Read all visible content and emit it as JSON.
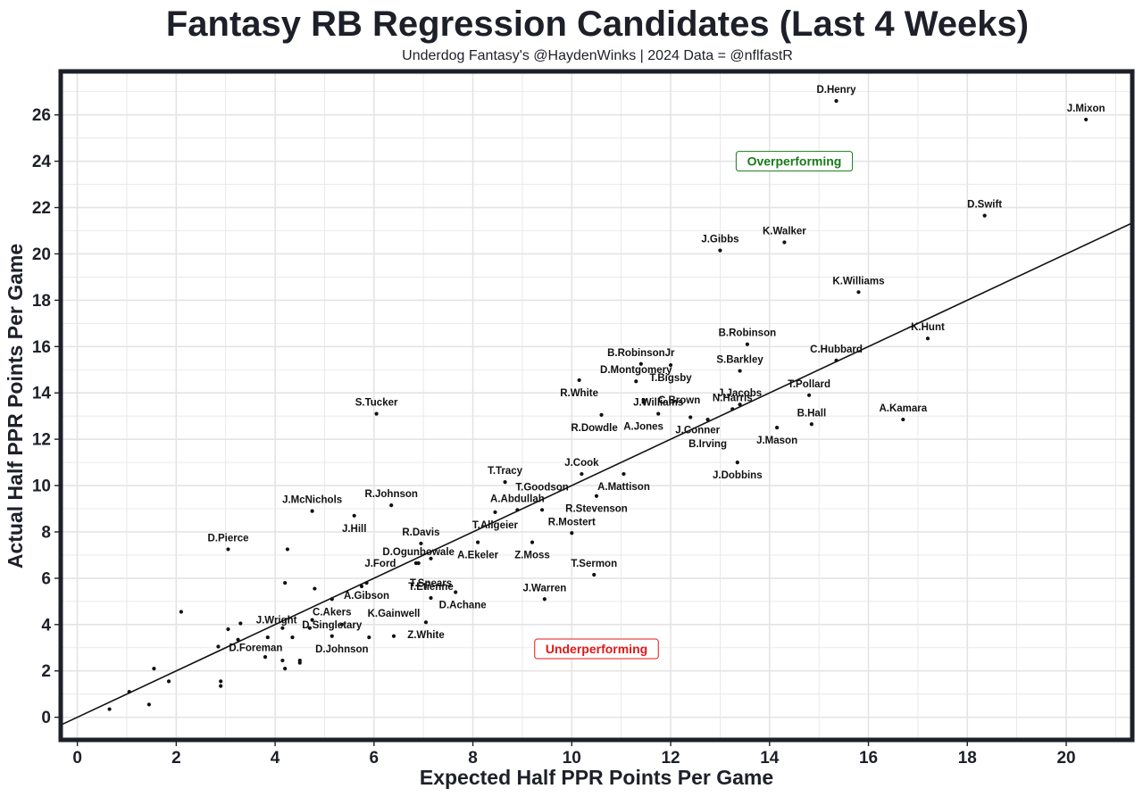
{
  "chart_data": {
    "type": "scatter",
    "title": "Fantasy RB Regression Candidates (Last 4 Weeks)",
    "subtitle": "Underdog Fantasy's @HaydenWinks | 2024 Data = @nflfastR",
    "xlabel": "Expected Half PPR Points Per Game",
    "ylabel": "Actual Half PPR Points Per Game",
    "xlim": [
      -0.3,
      21.3
    ],
    "ylim": [
      -0.9,
      27.8
    ],
    "xticks": [
      0,
      2,
      4,
      6,
      8,
      10,
      12,
      14,
      16,
      18,
      20
    ],
    "yticks": [
      0,
      2,
      4,
      6,
      8,
      10,
      12,
      14,
      16,
      18,
      20,
      22,
      24,
      26
    ],
    "reference_line": {
      "label": "y = x",
      "from": [
        -0.3,
        -0.3
      ],
      "to": [
        21.3,
        21.3
      ]
    },
    "annotations": [
      {
        "text": "Overperforming",
        "x": 14.5,
        "y": 24.0,
        "color": "#1a7a1a"
      },
      {
        "text": "Underperforming",
        "x": 10.5,
        "y": 2.95,
        "color": "#e01818"
      }
    ],
    "points": [
      {
        "name": "D.Henry",
        "x": 15.35,
        "y": 26.6
      },
      {
        "name": "J.Mixon",
        "x": 20.4,
        "y": 25.8
      },
      {
        "name": "D.Swift",
        "x": 18.35,
        "y": 21.65
      },
      {
        "name": "K.Walker",
        "x": 14.3,
        "y": 20.5
      },
      {
        "name": "J.Gibbs",
        "x": 13.0,
        "y": 20.15
      },
      {
        "name": "K.Williams",
        "x": 15.8,
        "y": 18.35
      },
      {
        "name": "K.Hunt",
        "x": 17.2,
        "y": 16.35
      },
      {
        "name": "B.Robinson",
        "x": 13.55,
        "y": 16.1
      },
      {
        "name": "B.RobinsonJr",
        "x": 11.4,
        "y": 15.25
      },
      {
        "name": "T.Bigsby",
        "x": 12.0,
        "y": 15.2
      },
      {
        "name": "C.Hubbard",
        "x": 15.35,
        "y": 15.4
      },
      {
        "name": "D.Montgomery",
        "x": 11.3,
        "y": 14.5
      },
      {
        "name": "S.Barkley",
        "x": 13.4,
        "y": 14.95
      },
      {
        "name": "R.White",
        "x": 10.15,
        "y": 14.55
      },
      {
        "name": "C.Brown",
        "x": 11.45,
        "y": 13.7
      },
      {
        "name": "T.Pollard",
        "x": 14.8,
        "y": 13.9
      },
      {
        "name": "J.Jacobs",
        "x": 13.4,
        "y": 13.5
      },
      {
        "name": "A.Jones",
        "x": 11.45,
        "y": 13.6
      },
      {
        "name": "J.Conner",
        "x": 12.4,
        "y": 12.95
      },
      {
        "name": "R.Dowdle",
        "x": 10.6,
        "y": 13.05
      },
      {
        "name": "J.Williams",
        "x": 11.75,
        "y": 13.1
      },
      {
        "name": "N.Harris",
        "x": 13.25,
        "y": 13.3
      },
      {
        "name": "B.Irving",
        "x": 12.75,
        "y": 12.85
      },
      {
        "name": "B.Hall",
        "x": 14.85,
        "y": 12.65
      },
      {
        "name": "J.Mason",
        "x": 14.15,
        "y": 12.5
      },
      {
        "name": "A.Kamara",
        "x": 16.7,
        "y": 12.85
      },
      {
        "name": "S.Tucker",
        "x": 6.05,
        "y": 13.1
      },
      {
        "name": "J.Dobbins",
        "x": 13.35,
        "y": 11.0
      },
      {
        "name": "T.Tracy",
        "x": 8.65,
        "y": 10.15
      },
      {
        "name": "J.Cook",
        "x": 10.2,
        "y": 10.5
      },
      {
        "name": "A.Mattison",
        "x": 11.05,
        "y": 10.5
      },
      {
        "name": "R.Stevenson",
        "x": 10.5,
        "y": 9.55
      },
      {
        "name": "A.Abdullah",
        "x": 8.9,
        "y": 8.95
      },
      {
        "name": "T.Allgeier",
        "x": 8.45,
        "y": 8.85
      },
      {
        "name": "T.Goodson",
        "x": 9.4,
        "y": 8.95
      },
      {
        "name": "R.Johnson",
        "x": 6.35,
        "y": 9.15
      },
      {
        "name": "J.McNichols",
        "x": 4.75,
        "y": 8.9
      },
      {
        "name": "J.Hill",
        "x": 5.6,
        "y": 8.7
      },
      {
        "name": "R.Mostert",
        "x": 10.0,
        "y": 7.95
      },
      {
        "name": "A.Ekeler",
        "x": 8.1,
        "y": 7.55
      },
      {
        "name": "R.Davis",
        "x": 6.95,
        "y": 7.5
      },
      {
        "name": "Z.Moss",
        "x": 9.2,
        "y": 7.55
      },
      {
        "name": "D.Pierce",
        "x": 3.05,
        "y": 7.25
      },
      {
        "name": "T.Spears",
        "x": 7.15,
        "y": 6.85
      },
      {
        "name": "D.Ogunbowale",
        "x": 6.9,
        "y": 6.65
      },
      {
        "name": "J.Ford",
        "x": 6.85,
        "y": 6.65
      },
      {
        "name": "T.Sermon",
        "x": 10.45,
        "y": 6.15
      },
      {
        "name": "A.Gibson",
        "x": 5.85,
        "y": 5.8
      },
      {
        "name": "D.Achane",
        "x": 7.65,
        "y": 5.4
      },
      {
        "name": "C.Akers",
        "x": 5.15,
        "y": 5.1
      },
      {
        "name": "T.Etienne",
        "x": 7.15,
        "y": 5.15
      },
      {
        "name": "J.Warren",
        "x": 9.45,
        "y": 5.1
      },
      {
        "name": "J.Wright",
        "x": 4.75,
        "y": 4.2
      },
      {
        "name": "Z.White",
        "x": 7.05,
        "y": 4.1
      },
      {
        "name": "D.Johnson",
        "x": 5.35,
        "y": 4.0
      },
      {
        "name": "D.Foreman",
        "x": 4.15,
        "y": 3.85
      },
      {
        "name": "D.Singletary",
        "x": 5.15,
        "y": 3.5
      },
      {
        "name": "K.Gainwell",
        "x": 6.4,
        "y": 3.5
      },
      {
        "name": "",
        "x": 4.25,
        "y": 7.25
      },
      {
        "name": "",
        "x": 4.2,
        "y": 5.8
      },
      {
        "name": "",
        "x": 4.8,
        "y": 5.55
      },
      {
        "name": "",
        "x": 5.75,
        "y": 5.65
      },
      {
        "name": "",
        "x": 2.1,
        "y": 4.55
      },
      {
        "name": "",
        "x": 3.3,
        "y": 4.05
      },
      {
        "name": "",
        "x": 3.05,
        "y": 3.8
      },
      {
        "name": "",
        "x": 3.25,
        "y": 3.35
      },
      {
        "name": "",
        "x": 2.85,
        "y": 3.05
      },
      {
        "name": "",
        "x": 3.85,
        "y": 3.45
      },
      {
        "name": "",
        "x": 4.35,
        "y": 3.45
      },
      {
        "name": "",
        "x": 4.7,
        "y": 3.85
      },
      {
        "name": "",
        "x": 5.9,
        "y": 3.45
      },
      {
        "name": "",
        "x": 3.8,
        "y": 2.6
      },
      {
        "name": "",
        "x": 4.15,
        "y": 2.45
      },
      {
        "name": "",
        "x": 4.2,
        "y": 2.1
      },
      {
        "name": "",
        "x": 4.5,
        "y": 2.45
      },
      {
        "name": "",
        "x": 4.5,
        "y": 2.35
      },
      {
        "name": "",
        "x": 1.55,
        "y": 2.1
      },
      {
        "name": "",
        "x": 1.85,
        "y": 1.55
      },
      {
        "name": "",
        "x": 2.9,
        "y": 1.55
      },
      {
        "name": "",
        "x": 2.9,
        "y": 1.35
      },
      {
        "name": "",
        "x": 1.05,
        "y": 1.1
      },
      {
        "name": "",
        "x": 1.45,
        "y": 0.55
      },
      {
        "name": "",
        "x": 0.65,
        "y": 0.35
      }
    ]
  }
}
